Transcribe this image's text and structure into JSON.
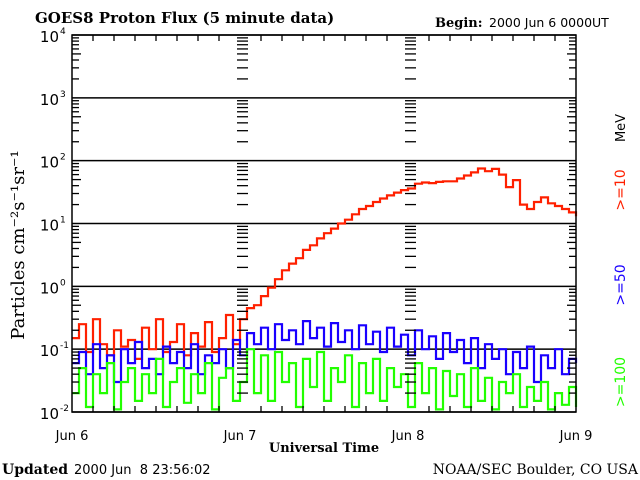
{
  "header": {
    "title": "GOES8 Proton Flux (5 minute data)",
    "begin_label": "Begin:",
    "begin_value": "2000 Jun 6 0000UT"
  },
  "footer": {
    "updated_label": "Updated",
    "updated_value": "2000 Jun  8 23:56:02",
    "credit": "NOAA/SEC Boulder, CO USA"
  },
  "chart_data": {
    "type": "line",
    "title": "GOES8 Proton Flux (5 minute data)",
    "xlabel": "Universal Time",
    "ylabel": "Particles cm⁻²s⁻¹sr⁻¹",
    "yscale": "log",
    "ylim": [
      0.01,
      10000
    ],
    "xlim": [
      "2000-06-06 00:00",
      "2000-06-09 00:00"
    ],
    "x_tick_labels": [
      "Jun 6",
      "Jun 7",
      "Jun 8",
      "Jun 9"
    ],
    "y_tick_labels": [
      {
        "base": "10",
        "exp": "4"
      },
      {
        "base": "10",
        "exp": "3"
      },
      {
        "base": "10",
        "exp": "2"
      },
      {
        "base": "10",
        "exp": "1"
      },
      {
        "base": "10",
        "exp": "0"
      },
      {
        "base": "10",
        "exp": "-1"
      },
      {
        "base": "10",
        "exp": "-2"
      }
    ],
    "units_label": "MeV",
    "grid": "horizontal at decades",
    "x_step_hours": 1,
    "series": [
      {
        "name": ">=10",
        "color": "#ff2000",
        "values": [
          0.15,
          0.25,
          0.09,
          0.3,
          0.12,
          0.08,
          0.2,
          0.11,
          0.14,
          0.07,
          0.22,
          0.1,
          0.3,
          0.09,
          0.13,
          0.25,
          0.08,
          0.18,
          0.11,
          0.27,
          0.09,
          0.15,
          0.35,
          0.12,
          0.3,
          0.45,
          0.5,
          0.7,
          0.95,
          1.3,
          1.8,
          2.3,
          2.8,
          3.8,
          4.5,
          5.8,
          7,
          8.3,
          10,
          11.5,
          14,
          17,
          19,
          22,
          25,
          28,
          31,
          34,
          36,
          43,
          45,
          44,
          46,
          47,
          47,
          52,
          58,
          65,
          75,
          68,
          74,
          60,
          38,
          49,
          20,
          17,
          22,
          26,
          21,
          19,
          17,
          15,
          13
        ]
      },
      {
        "name": ">=50",
        "color": "#1a00ff",
        "values": [
          0.06,
          0.09,
          0.04,
          0.12,
          0.05,
          0.08,
          0.03,
          0.1,
          0.06,
          0.13,
          0.05,
          0.07,
          0.04,
          0.11,
          0.06,
          0.09,
          0.05,
          0.12,
          0.04,
          0.08,
          0.06,
          0.1,
          0.05,
          0.14,
          0.08,
          0.18,
          0.12,
          0.22,
          0.1,
          0.25,
          0.14,
          0.2,
          0.12,
          0.28,
          0.15,
          0.22,
          0.11,
          0.26,
          0.13,
          0.2,
          0.1,
          0.24,
          0.12,
          0.19,
          0.09,
          0.22,
          0.11,
          0.17,
          0.08,
          0.2,
          0.1,
          0.16,
          0.07,
          0.18,
          0.09,
          0.14,
          0.06,
          0.15,
          0.05,
          0.12,
          0.07,
          0.1,
          0.04,
          0.09,
          0.05,
          0.11,
          0.03,
          0.08,
          0.05,
          0.1,
          0.04,
          0.07,
          0.06
        ]
      },
      {
        "name": ">=100",
        "color": "#22ff00",
        "values": [
          0.02,
          0.05,
          0.012,
          0.04,
          0.02,
          0.06,
          0.011,
          0.03,
          0.05,
          0.015,
          0.04,
          0.02,
          0.07,
          0.012,
          0.03,
          0.05,
          0.014,
          0.04,
          0.02,
          0.06,
          0.011,
          0.035,
          0.05,
          0.015,
          0.03,
          0.1,
          0.02,
          0.08,
          0.015,
          0.09,
          0.03,
          0.06,
          0.012,
          0.07,
          0.025,
          0.09,
          0.015,
          0.05,
          0.03,
          0.08,
          0.012,
          0.06,
          0.02,
          0.07,
          0.015,
          0.05,
          0.025,
          0.04,
          0.012,
          0.06,
          0.02,
          0.05,
          0.011,
          0.045,
          0.018,
          0.04,
          0.012,
          0.05,
          0.015,
          0.035,
          0.011,
          0.03,
          0.02,
          0.04,
          0.012,
          0.025,
          0.015,
          0.03,
          0.011,
          0.02,
          0.013,
          0.025,
          0.012
        ]
      }
    ]
  }
}
